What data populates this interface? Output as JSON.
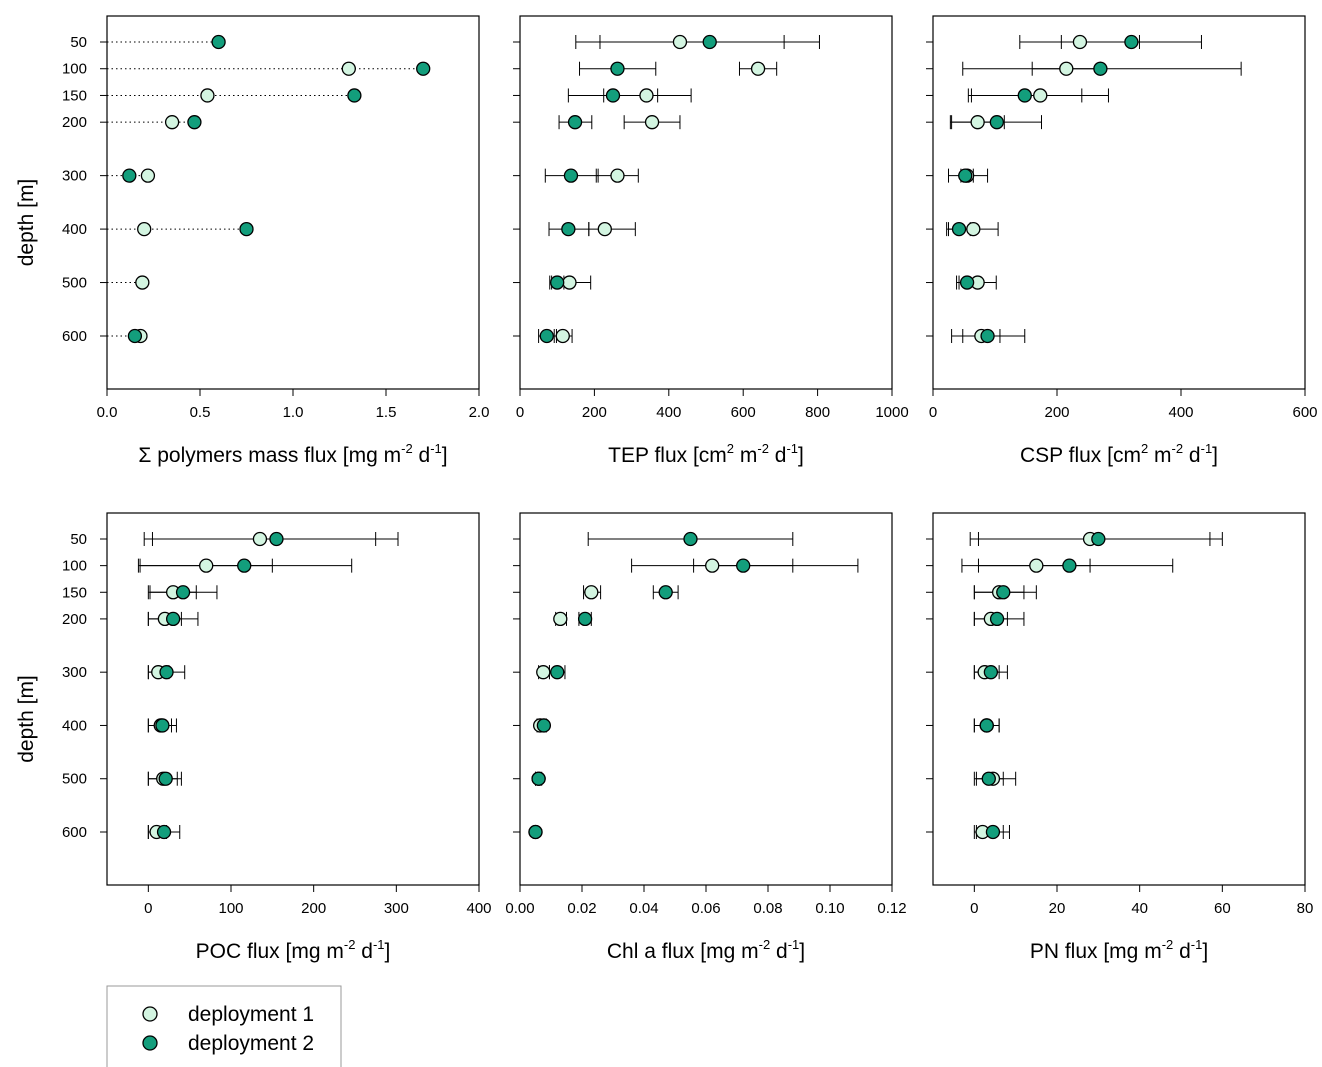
{
  "colors": {
    "deployment1": "#d3f5e1",
    "deployment2": "#139e7c",
    "stroke": "#000000"
  },
  "legend": {
    "items": [
      {
        "label": "deployment 1",
        "series": "deployment1"
      },
      {
        "label": "deployment 2",
        "series": "deployment2"
      }
    ]
  },
  "chart_data": [
    {
      "type": "scatter",
      "panel": "top-left",
      "xlabel": "Σ polymers mass flux [mg m^-2 d^-1]",
      "xlabel_parts": {
        "pre": "Σ polymers mass flux [mg m",
        "sup1": "-2",
        "mid": " d",
        "sup2": "-1",
        "post": "]"
      },
      "ylabel": "depth [m]",
      "xlim": [
        0,
        2.0
      ],
      "xticks": [
        "0.0",
        "0.5",
        "1.0",
        "1.5",
        "2.0"
      ],
      "xtick_values": [
        0,
        0.5,
        1.0,
        1.5,
        2.0
      ],
      "depths": [
        50,
        100,
        150,
        200,
        300,
        400,
        500,
        600
      ],
      "dotted_guides": true,
      "series": [
        {
          "name": "deployment 1",
          "values": [
            null,
            1.3,
            0.54,
            0.35,
            0.22,
            0.2,
            0.19,
            0.18
          ]
        },
        {
          "name": "deployment 2",
          "values": [
            0.6,
            1.7,
            1.33,
            0.47,
            0.12,
            0.75,
            null,
            0.15
          ]
        }
      ]
    },
    {
      "type": "scatter",
      "panel": "top-middle",
      "xlabel": "TEP flux [cm^2 m^-2 d^-1]",
      "xlabel_parts": {
        "pre": "TEP flux [cm",
        "sup0": "2",
        "mid0": " m",
        "sup1": "-2",
        "mid": " d",
        "sup2": "-1",
        "post": "]"
      },
      "xlim": [
        0,
        1000
      ],
      "xticks": [
        "0",
        "200",
        "400",
        "600",
        "800",
        "1000"
      ],
      "xtick_values": [
        0,
        200,
        400,
        600,
        800,
        1000
      ],
      "depths": [
        50,
        100,
        150,
        200,
        300,
        400,
        500,
        600
      ],
      "series": [
        {
          "name": "deployment 1",
          "values": [
            430,
            640,
            340,
            355,
            262,
            228,
            133,
            115
          ],
          "err_low": [
            215,
            590,
            225,
            280,
            205,
            185,
            80,
            92
          ],
          "err_high": [
            710,
            690,
            460,
            430,
            318,
            310,
            190,
            140
          ]
        },
        {
          "name": "deployment 2",
          "values": [
            510,
            262,
            250,
            148,
            137,
            130,
            100,
            72
          ],
          "err_low": [
            150,
            160,
            130,
            105,
            68,
            78,
            85,
            50
          ],
          "err_high": [
            805,
            365,
            370,
            193,
            210,
            185,
            118,
            98
          ]
        }
      ]
    },
    {
      "type": "scatter",
      "panel": "top-right",
      "xlabel": "CSP flux [cm^2 m^-2 d^-1]",
      "xlabel_parts": {
        "pre": "CSP flux [cm",
        "sup0": "2",
        "mid0": " m",
        "sup1": "-2",
        "mid": " d",
        "sup2": "-1",
        "post": "]"
      },
      "xlim": [
        0,
        600
      ],
      "xticks": [
        "0",
        "200",
        "400",
        "600"
      ],
      "xtick_values": [
        0,
        200,
        400,
        600
      ],
      "depths": [
        50,
        100,
        150,
        200,
        300,
        400,
        500,
        600
      ],
      "series": [
        {
          "name": "deployment 1",
          "values": [
            237,
            215,
            173,
            72,
            55,
            65,
            72,
            78
          ],
          "err_low": [
            140,
            160,
            62,
            28,
            45,
            25,
            42,
            48
          ],
          "err_high": [
            333,
            270,
            283,
            115,
            65,
            105,
            102,
            108
          ]
        },
        {
          "name": "deployment 2",
          "values": [
            320,
            270,
            148,
            103,
            52,
            42,
            55,
            88
          ],
          "err_low": [
            207,
            48,
            57,
            30,
            25,
            22,
            38,
            30
          ],
          "err_high": [
            433,
            497,
            240,
            175,
            88,
            60,
            72,
            148
          ]
        }
      ]
    },
    {
      "type": "scatter",
      "panel": "bottom-left",
      "xlabel": "POC flux [mg m^-2 d^-1]",
      "xlabel_parts": {
        "pre": "POC flux [mg m",
        "sup1": "-2",
        "mid": " d",
        "sup2": "-1",
        "post": "]"
      },
      "ylabel": "depth [m]",
      "xlim": [
        -50,
        400
      ],
      "xticks": [
        "0",
        "100",
        "200",
        "300",
        "400"
      ],
      "xtick_values": [
        0,
        100,
        200,
        300,
        400
      ],
      "depths": [
        50,
        100,
        150,
        200,
        300,
        400,
        500,
        600
      ],
      "series": [
        {
          "name": "deployment 1",
          "values": [
            135,
            70,
            30,
            20,
            12,
            15,
            18,
            10
          ],
          "err_low": [
            -5,
            -10,
            2,
            0,
            0,
            0,
            0,
            0
          ],
          "err_high": [
            275,
            150,
            58,
            40,
            25,
            28,
            35,
            22
          ]
        },
        {
          "name": "deployment 2",
          "values": [
            155,
            116,
            42,
            30,
            22,
            17,
            21,
            19
          ],
          "err_low": [
            5,
            -12,
            0,
            0,
            0,
            0,
            0,
            0
          ],
          "err_high": [
            302,
            246,
            83,
            60,
            44,
            34,
            40,
            38
          ]
        }
      ]
    },
    {
      "type": "scatter",
      "panel": "bottom-middle",
      "xlabel": "Chl a flux [mg m^-2 d^-1]",
      "xlabel_parts": {
        "pre": "Chl a flux [mg m",
        "sup1": "-2",
        "mid": " d",
        "sup2": "-1",
        "post": "]"
      },
      "xlim": [
        0,
        0.12
      ],
      "xticks": [
        "0.00",
        "0.02",
        "0.04",
        "0.06",
        "0.08",
        "0.10",
        "0.12"
      ],
      "xtick_values": [
        0,
        0.02,
        0.04,
        0.06,
        0.08,
        0.1,
        0.12
      ],
      "depths": [
        50,
        100,
        150,
        200,
        300,
        400,
        500,
        600
      ],
      "series": [
        {
          "name": "deployment 1",
          "values": [
            null,
            0.062,
            0.023,
            0.013,
            0.0075,
            0.0065,
            0.006,
            0.005
          ],
          "err_low": [
            null,
            0.036,
            0.0205,
            0.0115,
            0.006,
            0.0055,
            0.005,
            0.0045
          ],
          "err_high": [
            null,
            0.088,
            0.026,
            0.015,
            0.0095,
            0.0075,
            0.007,
            0.0055
          ]
        },
        {
          "name": "deployment 2",
          "values": [
            0.055,
            0.072,
            0.047,
            0.021,
            0.012,
            0.0077,
            0.006,
            0.005
          ],
          "err_low": [
            0.022,
            0.056,
            0.043,
            0.019,
            0.0095,
            0.0065,
            0.005,
            0.0045
          ],
          "err_high": [
            0.088,
            0.109,
            0.051,
            0.023,
            0.0145,
            0.0085,
            0.0065,
            0.0055
          ]
        }
      ]
    },
    {
      "type": "scatter",
      "panel": "bottom-right",
      "xlabel": "PN flux [mg m^-2 d^-1]",
      "xlabel_parts": {
        "pre": "PN flux [mg m",
        "sup1": "-2",
        "mid": " d",
        "sup2": "-1",
        "post": "]"
      },
      "xlim": [
        -10,
        80
      ],
      "xticks": [
        "0",
        "20",
        "40",
        "60",
        "80"
      ],
      "xtick_values": [
        0,
        20,
        40,
        60,
        80
      ],
      "depths": [
        50,
        100,
        150,
        200,
        300,
        400,
        500,
        600
      ],
      "series": [
        {
          "name": "deployment 1",
          "values": [
            28,
            15,
            6,
            4,
            2.5,
            3,
            4.5,
            2
          ],
          "err_low": [
            -1,
            -3,
            0,
            0,
            0,
            0,
            0,
            0
          ],
          "err_high": [
            57,
            28,
            12,
            8,
            6,
            6,
            10,
            7
          ]
        },
        {
          "name": "deployment 2",
          "values": [
            30,
            23,
            7,
            5.5,
            4,
            3,
            3.5,
            4.5
          ],
          "err_low": [
            1,
            1,
            0,
            0,
            0,
            0,
            0.5,
            0.5
          ],
          "err_high": [
            60,
            48,
            15,
            12,
            8,
            6,
            7,
            8.5
          ]
        }
      ]
    }
  ]
}
